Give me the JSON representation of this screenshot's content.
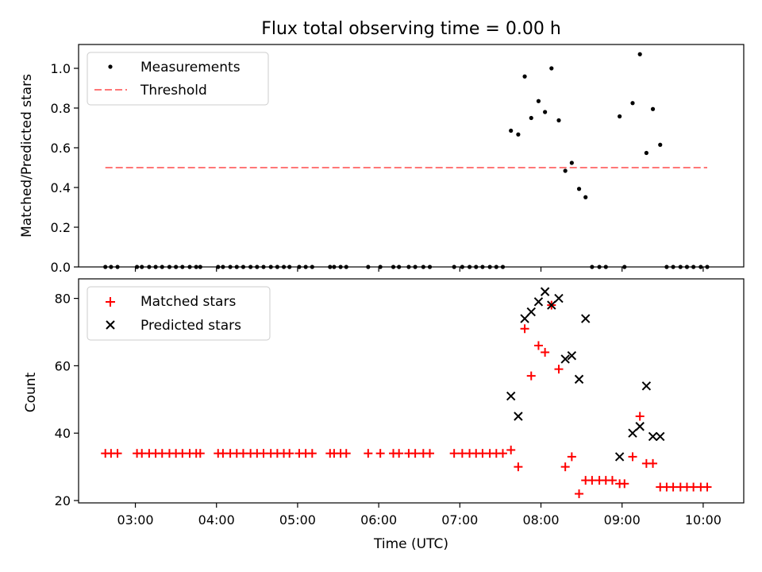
{
  "chart_data": [
    {
      "type": "scatter",
      "title": "Flux total observing time = 0.00 h",
      "xlabel": "",
      "ylabel": "Matched/Predicted stars",
      "xlim": [
        2.3,
        10.5
      ],
      "ylim": [
        0.0,
        1.12
      ],
      "yticks": [
        0.0,
        0.2,
        0.4,
        0.6,
        0.8,
        1.0
      ],
      "ytick_labels": [
        "0.0",
        "0.2",
        "0.4",
        "0.6",
        "0.8",
        "1.0"
      ],
      "legend_position": "top-left",
      "series": [
        {
          "name": "Measurements",
          "marker": "dot",
          "color": "#000000",
          "points": [
            [
              2.63,
              0.0
            ],
            [
              2.7,
              0.0
            ],
            [
              2.78,
              0.0
            ],
            [
              3.02,
              0.0
            ],
            [
              3.08,
              0.0
            ],
            [
              3.17,
              0.0
            ],
            [
              3.25,
              0.0
            ],
            [
              3.33,
              0.0
            ],
            [
              3.42,
              0.0
            ],
            [
              3.5,
              0.0
            ],
            [
              3.58,
              0.0
            ],
            [
              3.67,
              0.0
            ],
            [
              3.75,
              0.0
            ],
            [
              3.8,
              0.0
            ],
            [
              4.02,
              0.0
            ],
            [
              4.08,
              0.0
            ],
            [
              4.17,
              0.0
            ],
            [
              4.25,
              0.0
            ],
            [
              4.33,
              0.0
            ],
            [
              4.42,
              0.0
            ],
            [
              4.5,
              0.0
            ],
            [
              4.58,
              0.0
            ],
            [
              4.67,
              0.0
            ],
            [
              4.75,
              0.0
            ],
            [
              4.83,
              0.0
            ],
            [
              4.9,
              0.0
            ],
            [
              5.02,
              0.0
            ],
            [
              5.1,
              0.0
            ],
            [
              5.18,
              0.0
            ],
            [
              5.4,
              0.0
            ],
            [
              5.45,
              0.0
            ],
            [
              5.53,
              0.0
            ],
            [
              5.6,
              0.0
            ],
            [
              5.87,
              0.0
            ],
            [
              6.02,
              0.0
            ],
            [
              6.18,
              0.0
            ],
            [
              6.25,
              0.0
            ],
            [
              6.37,
              0.0
            ],
            [
              6.45,
              0.0
            ],
            [
              6.55,
              0.0
            ],
            [
              6.63,
              0.0
            ],
            [
              6.93,
              0.0
            ],
            [
              7.03,
              0.0
            ],
            [
              7.12,
              0.0
            ],
            [
              7.2,
              0.0
            ],
            [
              7.28,
              0.0
            ],
            [
              7.37,
              0.0
            ],
            [
              7.45,
              0.0
            ],
            [
              7.53,
              0.0
            ],
            [
              7.63,
              0.686
            ],
            [
              7.72,
              0.667
            ],
            [
              7.8,
              0.959
            ],
            [
              7.88,
              0.75
            ],
            [
              7.97,
              0.835
            ],
            [
              8.05,
              0.78
            ],
            [
              8.13,
              1.0
            ],
            [
              8.22,
              0.738
            ],
            [
              8.3,
              0.484
            ],
            [
              8.38,
              0.524
            ],
            [
              8.47,
              0.393
            ],
            [
              8.55,
              0.351
            ],
            [
              8.63,
              0.0
            ],
            [
              8.72,
              0.0
            ],
            [
              8.8,
              0.0
            ],
            [
              8.97,
              0.758
            ],
            [
              9.03,
              0.0
            ],
            [
              9.13,
              0.825
            ],
            [
              9.22,
              1.071
            ],
            [
              9.3,
              0.574
            ],
            [
              9.38,
              0.795
            ],
            [
              9.47,
              0.615
            ],
            [
              9.55,
              0.0
            ],
            [
              9.63,
              0.0
            ],
            [
              9.72,
              0.0
            ],
            [
              9.8,
              0.0
            ],
            [
              9.88,
              0.0
            ],
            [
              9.97,
              0.0
            ],
            [
              10.05,
              0.0
            ]
          ]
        },
        {
          "name": "Threshold",
          "marker": "dashed-line",
          "color": "#ff7777",
          "points": [
            [
              2.63,
              0.5
            ],
            [
              10.05,
              0.5
            ]
          ]
        }
      ]
    },
    {
      "type": "scatter",
      "title": "",
      "xlabel": "Time (UTC)",
      "ylabel": "Count",
      "xlim": [
        2.3,
        10.5
      ],
      "ylim": [
        19.3,
        85.8
      ],
      "xticks": [
        3,
        4,
        5,
        6,
        7,
        8,
        9,
        10
      ],
      "xtick_labels": [
        "03:00",
        "04:00",
        "05:00",
        "06:00",
        "07:00",
        "08:00",
        "09:00",
        "10:00"
      ],
      "yticks": [
        20,
        40,
        60,
        80
      ],
      "ytick_labels": [
        "20",
        "40",
        "60",
        "80"
      ],
      "legend_position": "top-left",
      "series": [
        {
          "name": "Matched stars",
          "marker": "plus",
          "color": "#ff0000",
          "points": [
            [
              2.63,
              34
            ],
            [
              2.7,
              34
            ],
            [
              2.78,
              34
            ],
            [
              3.02,
              34
            ],
            [
              3.08,
              34
            ],
            [
              3.17,
              34
            ],
            [
              3.25,
              34
            ],
            [
              3.33,
              34
            ],
            [
              3.42,
              34
            ],
            [
              3.5,
              34
            ],
            [
              3.58,
              34
            ],
            [
              3.67,
              34
            ],
            [
              3.75,
              34
            ],
            [
              3.8,
              34
            ],
            [
              4.02,
              34
            ],
            [
              4.08,
              34
            ],
            [
              4.17,
              34
            ],
            [
              4.25,
              34
            ],
            [
              4.33,
              34
            ],
            [
              4.42,
              34
            ],
            [
              4.5,
              34
            ],
            [
              4.58,
              34
            ],
            [
              4.67,
              34
            ],
            [
              4.75,
              34
            ],
            [
              4.83,
              34
            ],
            [
              4.9,
              34
            ],
            [
              5.02,
              34
            ],
            [
              5.1,
              34
            ],
            [
              5.18,
              34
            ],
            [
              5.4,
              34
            ],
            [
              5.45,
              34
            ],
            [
              5.53,
              34
            ],
            [
              5.6,
              34
            ],
            [
              5.87,
              34
            ],
            [
              6.02,
              34
            ],
            [
              6.18,
              34
            ],
            [
              6.25,
              34
            ],
            [
              6.37,
              34
            ],
            [
              6.45,
              34
            ],
            [
              6.55,
              34
            ],
            [
              6.63,
              34
            ],
            [
              6.93,
              34
            ],
            [
              7.03,
              34
            ],
            [
              7.12,
              34
            ],
            [
              7.2,
              34
            ],
            [
              7.28,
              34
            ],
            [
              7.37,
              34
            ],
            [
              7.45,
              34
            ],
            [
              7.53,
              34
            ],
            [
              7.63,
              35
            ],
            [
              7.72,
              30
            ],
            [
              7.8,
              71
            ],
            [
              7.88,
              57
            ],
            [
              7.97,
              66
            ],
            [
              8.05,
              64
            ],
            [
              8.13,
              78
            ],
            [
              8.22,
              59
            ],
            [
              8.3,
              30
            ],
            [
              8.38,
              33
            ],
            [
              8.47,
              22
            ],
            [
              8.55,
              26
            ],
            [
              8.63,
              26
            ],
            [
              8.72,
              26
            ],
            [
              8.8,
              26
            ],
            [
              8.88,
              26
            ],
            [
              8.97,
              25
            ],
            [
              9.03,
              25
            ],
            [
              9.13,
              33
            ],
            [
              9.22,
              45
            ],
            [
              9.3,
              31
            ],
            [
              9.38,
              31
            ],
            [
              9.47,
              24
            ],
            [
              9.55,
              24
            ],
            [
              9.63,
              24
            ],
            [
              9.72,
              24
            ],
            [
              9.8,
              24
            ],
            [
              9.88,
              24
            ],
            [
              9.97,
              24
            ],
            [
              10.05,
              24
            ]
          ]
        },
        {
          "name": "Predicted stars",
          "marker": "x",
          "color": "#000000",
          "points": [
            [
              7.63,
              51
            ],
            [
              7.72,
              45
            ],
            [
              7.8,
              74
            ],
            [
              7.88,
              76
            ],
            [
              7.97,
              79
            ],
            [
              8.05,
              82
            ],
            [
              8.13,
              78
            ],
            [
              8.22,
              80
            ],
            [
              8.3,
              62
            ],
            [
              8.38,
              63
            ],
            [
              8.47,
              56
            ],
            [
              8.55,
              74
            ],
            [
              8.97,
              33
            ],
            [
              9.13,
              40
            ],
            [
              9.22,
              42
            ],
            [
              9.3,
              54
            ],
            [
              9.38,
              39
            ],
            [
              9.47,
              39
            ]
          ]
        }
      ]
    }
  ]
}
